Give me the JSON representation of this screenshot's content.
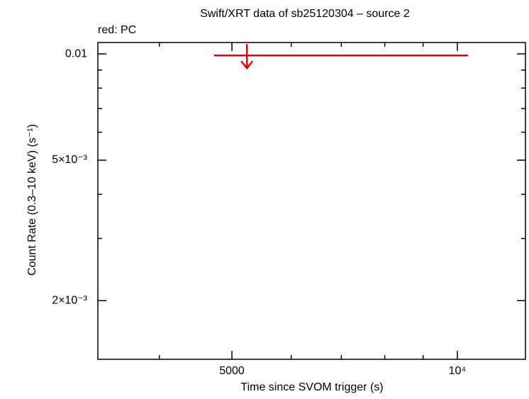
{
  "chart_data": {
    "type": "scatter",
    "title": "Swift/XRT data of sb25120304 – source 2",
    "subtitle": "red: PC",
    "x_label": "Time since SVOM trigger (s)",
    "y_label": "Count Rate (0.3–10 keV) (s⁻¹)",
    "xlog": true,
    "ylog": true,
    "xlim": [
      3311,
      12330
    ],
    "ylim": [
      0.001364,
      0.01077
    ],
    "xticks": [
      5000,
      {
        "value": 10000,
        "label": "10⁴"
      }
    ],
    "yticks": [
      0.01,
      {
        "value": 0.005,
        "label": "5×10⁻³"
      },
      {
        "value": 0.002,
        "label": "2×10⁻³"
      }
    ],
    "xminorticks": [
      4000,
      6000,
      7000,
      8000,
      9000
    ],
    "yminorticks": [
      0.009,
      0.008,
      0.007,
      0.006,
      0.004,
      0.003
    ],
    "series": [
      {
        "name": "PC",
        "color": "#ee0000",
        "upper_limit": true,
        "x": [
          5236
        ],
        "x_low": [
          4733
        ],
        "x_high": [
          10332
        ],
        "values": [
          0.0099
        ]
      }
    ]
  }
}
